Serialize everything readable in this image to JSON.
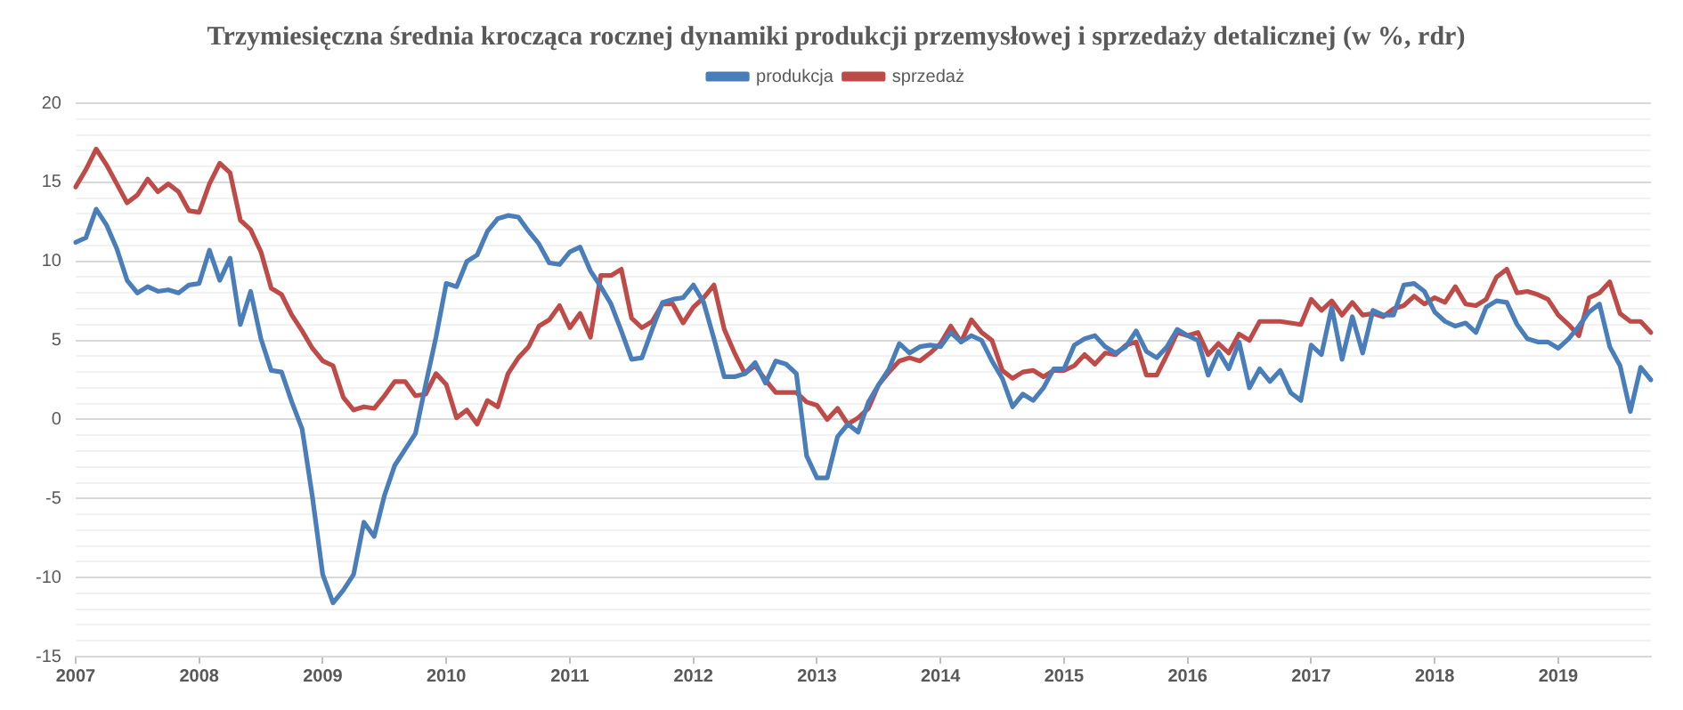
{
  "chart_data": {
    "type": "line",
    "title": "Trzymiesięczna średnia krocząca rocznej dynamiki produkcji przemysłowej i sprzedaży detalicznej (w %, rdr)",
    "categories": [
      "2007",
      null,
      null,
      null,
      null,
      null,
      null,
      null,
      null,
      null,
      null,
      null,
      "2008",
      null,
      null,
      null,
      null,
      null,
      null,
      null,
      null,
      null,
      null,
      null,
      "2009",
      null,
      null,
      null,
      null,
      null,
      null,
      null,
      null,
      null,
      null,
      null,
      "2010",
      null,
      null,
      null,
      null,
      null,
      null,
      null,
      null,
      null,
      null,
      null,
      "2011",
      null,
      null,
      null,
      null,
      null,
      null,
      null,
      null,
      null,
      null,
      null,
      "2012",
      null,
      null,
      null,
      null,
      null,
      null,
      null,
      null,
      null,
      null,
      null,
      "2013",
      null,
      null,
      null,
      null,
      null,
      null,
      null,
      null,
      null,
      null,
      null,
      "2014",
      null,
      null,
      null,
      null,
      null,
      null,
      null,
      null,
      null,
      null,
      null,
      "2015",
      null,
      null,
      null,
      null,
      null,
      null,
      null,
      null,
      null,
      null,
      null,
      "2016",
      null,
      null,
      null,
      null,
      null,
      null,
      null,
      null,
      null,
      null,
      null,
      "2017",
      null,
      null,
      null,
      null,
      null,
      null,
      null,
      null,
      null,
      null,
      null,
      "2018",
      null,
      null,
      null,
      null,
      null,
      null,
      null,
      null,
      null,
      null,
      null,
      "2019",
      null,
      null,
      null,
      null,
      null,
      null,
      null,
      null,
      null
    ],
    "series": [
      {
        "name": "produkcja",
        "color": "#4a7ebb",
        "values": [
          11.2,
          11.5,
          13.3,
          12.3,
          10.8,
          8.8,
          8.0,
          8.4,
          8.1,
          8.2,
          8.0,
          8.5,
          8.6,
          10.7,
          8.8,
          10.2,
          6.0,
          8.1,
          5.1,
          3.1,
          3.0,
          1.1,
          -0.6,
          -4.9,
          -9.8,
          -11.6,
          -10.8,
          -9.8,
          -6.5,
          -7.4,
          -4.8,
          -2.9,
          -1.9,
          -0.9,
          2.2,
          5.2,
          8.6,
          8.4,
          10.0,
          10.4,
          11.9,
          12.7,
          12.9,
          12.8,
          11.9,
          11.1,
          9.9,
          9.8,
          10.6,
          10.9,
          9.4,
          8.4,
          7.3,
          5.6,
          3.8,
          3.9,
          5.7,
          7.4,
          7.6,
          7.7,
          8.5,
          7.4,
          5.1,
          2.7,
          2.7,
          2.9,
          3.6,
          2.3,
          3.7,
          3.5,
          2.9,
          -2.3,
          -3.7,
          -3.7,
          -1.1,
          -0.3,
          -0.8,
          1.1,
          2.2,
          3.2,
          4.8,
          4.2,
          4.6,
          4.7,
          4.6,
          5.5,
          4.9,
          5.3,
          5.0,
          3.7,
          2.6,
          0.8,
          1.6,
          1.2,
          2.0,
          3.2,
          3.2,
          4.7,
          5.1,
          5.3,
          4.6,
          4.2,
          4.6,
          5.6,
          4.3,
          3.9,
          4.6,
          5.7,
          5.3,
          5.0,
          2.8,
          4.3,
          3.2,
          4.9,
          2.0,
          3.2,
          2.4,
          3.1,
          1.7,
          1.2,
          4.7,
          4.1,
          7.1,
          3.8,
          6.5,
          4.2,
          6.9,
          6.6,
          6.6,
          8.5,
          8.6,
          8.1,
          6.8,
          6.2,
          5.9,
          6.1,
          5.5,
          7.1,
          7.5,
          7.4,
          6.0,
          5.1,
          4.9,
          4.9,
          4.5,
          5.1,
          5.9,
          6.8,
          7.3,
          4.6,
          3.4,
          0.5,
          3.3,
          2.5
        ]
      },
      {
        "name": "sprzedaż",
        "color": "#be4b48",
        "values": [
          14.7,
          15.8,
          17.1,
          16.1,
          14.9,
          13.7,
          14.2,
          15.2,
          14.4,
          14.9,
          14.4,
          13.2,
          13.1,
          14.9,
          16.2,
          15.6,
          12.6,
          12.0,
          10.6,
          8.3,
          7.9,
          6.6,
          5.6,
          4.5,
          3.7,
          3.4,
          1.4,
          0.6,
          0.8,
          0.7,
          1.5,
          2.4,
          2.4,
          1.5,
          1.6,
          2.9,
          2.2,
          0.1,
          0.6,
          -0.3,
          1.2,
          0.8,
          2.9,
          3.9,
          4.6,
          5.9,
          6.3,
          7.2,
          5.8,
          6.7,
          5.2,
          9.1,
          9.1,
          9.5,
          6.4,
          5.8,
          6.2,
          7.3,
          7.3,
          6.1,
          7.1,
          7.7,
          8.5,
          5.7,
          4.2,
          2.9,
          3.4,
          2.5,
          1.7,
          1.7,
          1.7,
          1.1,
          0.9,
          0,
          0.7,
          -0.3,
          0.1,
          0.7,
          2.2,
          3.0,
          3.7,
          3.9,
          3.7,
          4.2,
          4.8,
          5.9,
          4.9,
          6.3,
          5.5,
          5.0,
          3.1,
          2.6,
          3.0,
          3.1,
          2.7,
          3.1,
          3.1,
          3.4,
          4.1,
          3.5,
          4.2,
          4.1,
          4.7,
          4.9,
          2.8,
          2.8,
          4.1,
          5.5,
          5.3,
          5.5,
          4.1,
          4.8,
          4.2,
          5.4,
          5.0,
          6.2,
          6.2,
          6.2,
          6.1,
          6.0,
          7.6,
          6.9,
          7.5,
          6.6,
          7.4,
          6.6,
          6.7,
          6.5,
          7.0,
          7.2,
          7.8,
          7.3,
          7.7,
          7.4,
          8.4,
          7.3,
          7.2,
          7.6,
          9.0,
          9.5,
          8.0,
          8.1,
          7.9,
          7.6,
          6.6,
          6.0,
          5.3,
          7.7,
          8.0,
          8.7,
          6.7,
          6.2,
          6.2,
          5.5
        ]
      }
    ],
    "ylim": [
      -15,
      20
    ],
    "yticks": [
      -15,
      {
        "value": -14,
        "label": null
      },
      {
        "value": -13,
        "label": null
      },
      {
        "value": -12,
        "label": null
      },
      {
        "value": -11,
        "label": null
      },
      -10,
      {
        "value": -9,
        "label": null
      },
      {
        "value": -8,
        "label": null
      },
      {
        "value": -7,
        "label": null
      },
      {
        "value": -6,
        "label": null
      },
      -5,
      {
        "value": -4,
        "label": null
      },
      {
        "value": -3,
        "label": null
      },
      {
        "value": -2,
        "label": null
      },
      {
        "value": -1,
        "label": null
      },
      0,
      {
        "value": 1,
        "label": null
      },
      {
        "value": 2,
        "label": null
      },
      {
        "value": 3,
        "label": null
      },
      {
        "value": 4,
        "label": null
      },
      5,
      {
        "value": 6,
        "label": null
      },
      {
        "value": 7,
        "label": null
      },
      {
        "value": 8,
        "label": null
      },
      {
        "value": 9,
        "label": null
      },
      10,
      {
        "value": 11,
        "label": null
      },
      {
        "value": 12,
        "label": null
      },
      {
        "value": 13,
        "label": null
      },
      {
        "value": 14,
        "label": null
      },
      15,
      {
        "value": 16,
        "label": null
      },
      {
        "value": 17,
        "label": null
      },
      {
        "value": 18,
        "label": null
      },
      {
        "value": 19,
        "label": null
      },
      20
    ],
    "grid": "y",
    "legend": "top",
    "marker": "none",
    "line_style": "solid"
  }
}
